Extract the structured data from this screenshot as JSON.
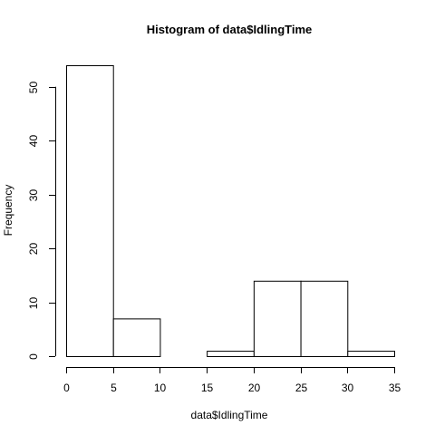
{
  "chart_data": {
    "type": "bar",
    "title": "Histogram of data$IdlingTime",
    "xlabel": "data$IdlingTime",
    "ylabel": "Frequency",
    "bins": [
      {
        "from": 0,
        "to": 5,
        "count": 54
      },
      {
        "from": 5,
        "to": 10,
        "count": 7
      },
      {
        "from": 10,
        "to": 15,
        "count": 0
      },
      {
        "from": 15,
        "to": 20,
        "count": 1
      },
      {
        "from": 20,
        "to": 25,
        "count": 14
      },
      {
        "from": 25,
        "to": 30,
        "count": 14
      },
      {
        "from": 30,
        "to": 35,
        "count": 1
      }
    ],
    "xlim": [
      0,
      35
    ],
    "ylim": [
      0,
      54
    ],
    "xticks": [
      "0",
      "5",
      "10",
      "15",
      "20",
      "25",
      "30",
      "35"
    ],
    "yticks": [
      "0",
      "10",
      "20",
      "30",
      "40",
      "50"
    ],
    "grid": false,
    "legend": "none",
    "bar_fill": "#ffffff",
    "bar_stroke": "#000000"
  }
}
